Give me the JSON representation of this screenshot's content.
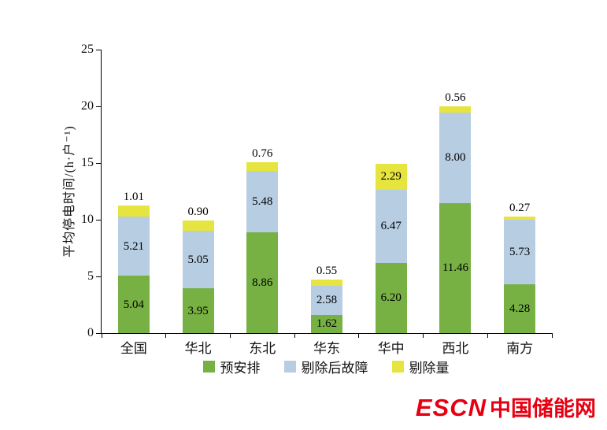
{
  "chart_data": {
    "type": "bar",
    "subtype": "stacked-vertical",
    "categories": [
      "全国",
      "华北",
      "东北",
      "华东",
      "华中",
      "西北",
      "南方"
    ],
    "series": [
      {
        "name": "预安排",
        "color": "#77b043",
        "values": [
          5.04,
          3.95,
          8.86,
          1.62,
          6.2,
          11.46,
          4.28
        ]
      },
      {
        "name": "剔除后故障",
        "color": "#b7cde2",
        "values": [
          5.21,
          5.05,
          5.48,
          2.58,
          6.47,
          8.0,
          5.73
        ]
      },
      {
        "name": "剔除量",
        "color": "#e6e43e",
        "values": [
          1.01,
          0.9,
          0.76,
          0.55,
          2.29,
          0.56,
          0.27
        ]
      }
    ],
    "title": "",
    "xlabel": "",
    "ylabel": "平均停电时间/(h·户⁻¹)",
    "ylim": [
      0,
      25
    ],
    "yticks": [
      0,
      5,
      10,
      15,
      20,
      25
    ],
    "grid": false,
    "legend_position": "bottom",
    "value_label_format": "2-decimals"
  },
  "branding": {
    "escn": "ESCN",
    "site_name": "中国储能网",
    "color": "#e60012"
  }
}
